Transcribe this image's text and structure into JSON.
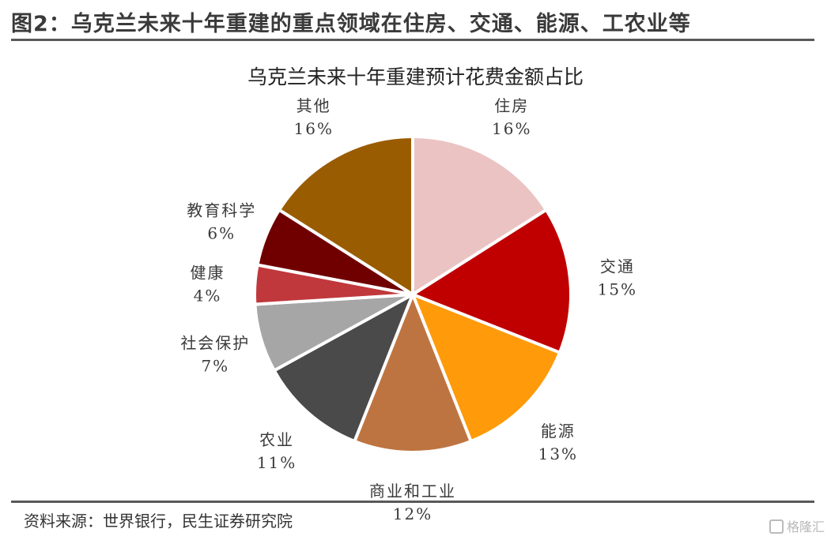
{
  "figure": {
    "title": "图2：乌克兰未来十年重建的重点领域在住房、交通、能源、工农业等",
    "source": "资料来源：世界银行，民生证券研究院",
    "watermark": "格隆汇"
  },
  "chart_data": {
    "type": "pie",
    "title": "乌克兰未来十年重建预计花费金额占比",
    "start_angle_deg": 90,
    "direction": "clockwise",
    "slices": [
      {
        "label": "住房",
        "value": 16,
        "value_label": "16%",
        "color": "#EBC3C3"
      },
      {
        "label": "交通",
        "value": 15,
        "value_label": "15%",
        "color": "#C00000"
      },
      {
        "label": "能源",
        "value": 13,
        "value_label": "13%",
        "color": "#FF9A0A"
      },
      {
        "label": "商业和工业",
        "value": 12,
        "value_label": "12%",
        "color": "#BE7441"
      },
      {
        "label": "农业",
        "value": 11,
        "value_label": "11%",
        "color": "#4A4A4A"
      },
      {
        "label": "社会保护",
        "value": 7,
        "value_label": "7%",
        "color": "#A6A6A6"
      },
      {
        "label": "健康",
        "value": 4,
        "value_label": "4%",
        "color": "#C0383C"
      },
      {
        "label": "教育科学",
        "value": 6,
        "value_label": "6%",
        "color": "#700000"
      },
      {
        "label": "其他",
        "value": 16,
        "value_label": "16%",
        "color": "#9A5C00"
      }
    ]
  }
}
